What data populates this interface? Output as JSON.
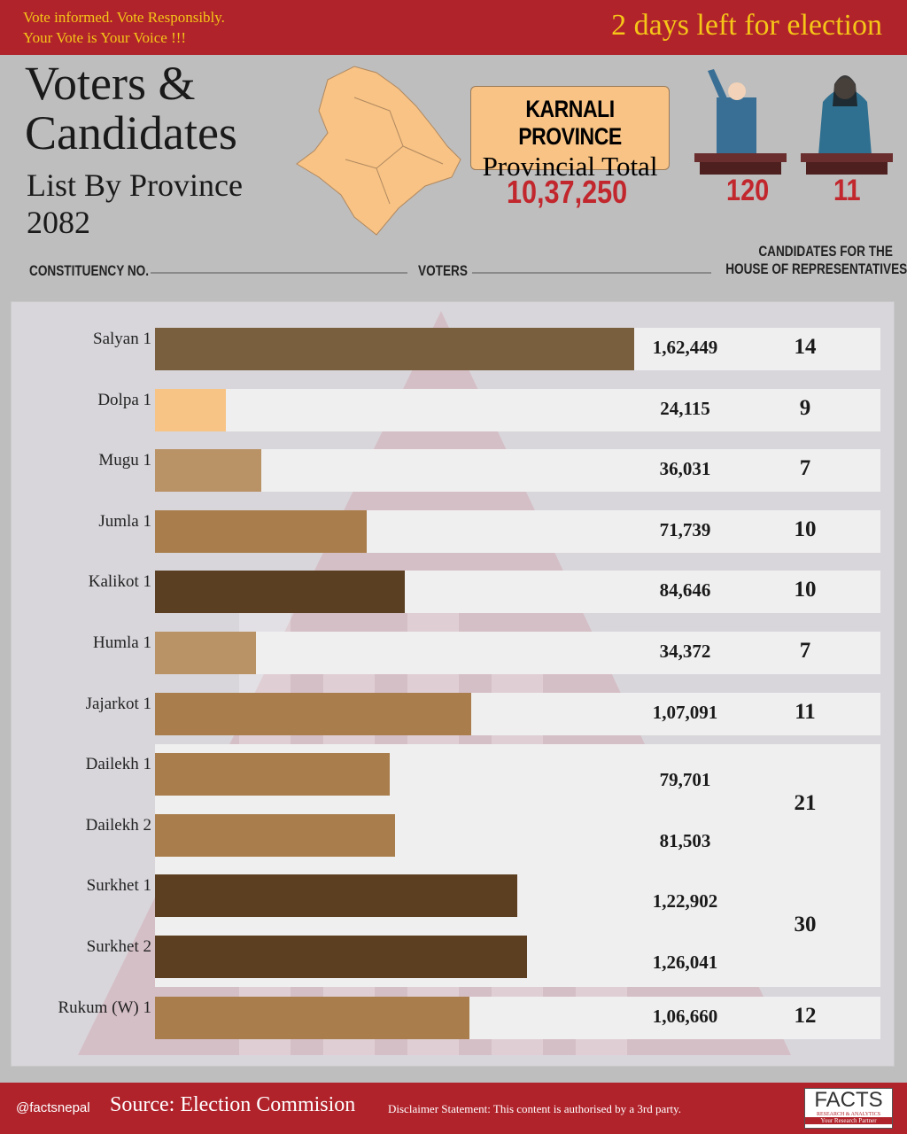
{
  "header": {
    "tagline_1": "Vote informed. Vote Responsibly.",
    "tagline_2": "Your Vote is Your Voice !!!",
    "countdown": "2 days left for election"
  },
  "title": {
    "line1": "Voters &",
    "line2": "Candidates",
    "sub1": "List By Province",
    "sub2": "2082"
  },
  "province": {
    "name": "KARNALI PROVINCE",
    "label": "Provincial Total",
    "total_voters": "10,37,250",
    "male_candidates": "120",
    "female_candidates": "11"
  },
  "columns": {
    "constituency": "CONSTITUENCY NO.",
    "voters": "VOTERS",
    "candidates_1": "CANDIDATES FOR THE",
    "candidates_2": "HOUSE OF REPRESENTATIVES"
  },
  "chart_data": {
    "type": "bar",
    "orientation": "horizontal",
    "categories": [
      "Salyan 1",
      "Dolpa 1",
      "Mugu 1",
      "Jumla 1",
      "Kalikot 1",
      "Humla 1",
      "Jajarkot 1",
      "Dailekh 1",
      "Dailekh 2",
      "Surkhet 1",
      "Surkhet 2",
      "Rukum (W) 1"
    ],
    "values": [
      162449,
      24115,
      36031,
      71739,
      84646,
      34372,
      107091,
      79701,
      81503,
      122902,
      126041,
      106660
    ],
    "value_labels": [
      "1,62,449",
      "24,115",
      "36,031",
      "71,739",
      "84,646",
      "34,372",
      "1,07,091",
      "79,701",
      "81,503",
      "1,22,902",
      "1,26,041",
      "1,06,660"
    ],
    "colors": [
      "#7a5f3f",
      "#f7c486",
      "#b99266",
      "#aa7e4c",
      "#5a3f22",
      "#b99266",
      "#aa7e4c",
      "#aa7e4c",
      "#aa7e4c",
      "#5c3f20",
      "#5c3f20",
      "#aa7e4c"
    ],
    "candidate_groups": [
      {
        "rows": [
          0
        ],
        "value": "14"
      },
      {
        "rows": [
          1
        ],
        "value": "9"
      },
      {
        "rows": [
          2
        ],
        "value": "7"
      },
      {
        "rows": [
          3
        ],
        "value": "10"
      },
      {
        "rows": [
          4
        ],
        "value": "10"
      },
      {
        "rows": [
          5
        ],
        "value": "7"
      },
      {
        "rows": [
          6
        ],
        "value": "11"
      },
      {
        "rows": [
          7,
          8
        ],
        "value": "21"
      },
      {
        "rows": [
          9,
          10
        ],
        "value": "30"
      },
      {
        "rows": [
          11
        ],
        "value": "12"
      }
    ]
  },
  "footer": {
    "handle": "@factsnepal",
    "source": "Source: Election Commision",
    "disclaimer": "Disclaimer Statement: This content is authorised by a 3rd party.",
    "logo": "FACTS",
    "logo_sub": "RESEARCH & ANALYTICS",
    "logo_tag": "Your Research Partner"
  },
  "colors": {
    "brand_red": "#b0232b",
    "accent_yellow": "#f5c518",
    "box": "#f8c384"
  }
}
